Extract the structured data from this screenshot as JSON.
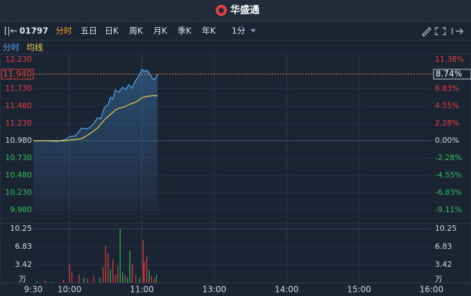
{
  "header": {
    "brand": "华盛通"
  },
  "toolbar": {
    "code": "01797",
    "tabs": [
      "分时",
      "五日",
      "日K",
      "周K",
      "月K",
      "季K",
      "年K"
    ],
    "interval": "1分"
  },
  "chart_data": {
    "type": "line",
    "xlim": [
      0,
      330
    ],
    "xticks": [
      {
        "value": 0,
        "label": "9:30"
      },
      {
        "value": 30,
        "label": "10:00"
      },
      {
        "value": 90,
        "label": "11:00"
      },
      {
        "value": 150,
        "label": "13:00"
      },
      {
        "value": 210,
        "label": "14:00"
      },
      {
        "value": 270,
        "label": "15:00"
      },
      {
        "value": 330,
        "label": "16:00"
      }
    ],
    "ylim": [
      9.98,
      12.23
    ],
    "yticks": [
      {
        "value": 12.23,
        "label": "12.230"
      },
      {
        "value": 11.73,
        "label": "11.730"
      },
      {
        "value": 11.48,
        "label": "11.480"
      },
      {
        "value": 11.23,
        "label": "11.230"
      },
      {
        "value": 10.98,
        "label": "10.980"
      },
      {
        "value": 10.73,
        "label": "10.730"
      },
      {
        "value": 10.48,
        "label": "10.480"
      },
      {
        "value": 10.23,
        "label": "10.230"
      },
      {
        "value": 9.98,
        "label": "9.980"
      }
    ],
    "y2lim": [
      -9.11,
      11.38
    ],
    "y2ticks": [
      {
        "value": 11.38,
        "label": "11.38%"
      },
      {
        "value": 6.83,
        "label": "6.83%"
      },
      {
        "value": 4.55,
        "label": "4.55%"
      },
      {
        "value": 2.28,
        "label": "2.28%"
      },
      {
        "value": 0,
        "label": "0.00%"
      },
      {
        "value": -2.28,
        "label": "-2.28%"
      },
      {
        "value": -4.55,
        "label": "-4.55%"
      },
      {
        "value": -6.83,
        "label": "-6.83%"
      },
      {
        "value": -9.11,
        "label": "-9.11%"
      }
    ],
    "last_price": {
      "value": 11.94,
      "label": "11.940"
    },
    "last_change": {
      "value": 8.74,
      "label": "8.74%"
    },
    "x": [
      0,
      10,
      20,
      27,
      30,
      35,
      40,
      45,
      50,
      53,
      56,
      59,
      62,
      64,
      66,
      68,
      71,
      74,
      77,
      79,
      82,
      84,
      87,
      90,
      92,
      94,
      96,
      98,
      100,
      102,
      103
    ],
    "series": [
      {
        "name": "分时",
        "color": "#5aa9f0",
        "values": [
          10.98,
          10.98,
          10.97,
          11.0,
          11.04,
          11.05,
          11.16,
          11.15,
          11.22,
          11.31,
          11.3,
          11.46,
          11.5,
          11.61,
          11.58,
          11.71,
          11.68,
          11.75,
          11.72,
          11.79,
          11.74,
          11.83,
          11.9,
          12.01,
          11.98,
          12.0,
          11.96,
          11.9,
          11.86,
          11.9,
          11.94
        ]
      },
      {
        "name": "均线",
        "color": "#f0d34a",
        "values": [
          10.98,
          10.98,
          10.98,
          10.98,
          10.99,
          11.0,
          11.01,
          11.06,
          11.12,
          11.16,
          11.22,
          11.28,
          11.33,
          11.36,
          11.39,
          11.42,
          11.45,
          11.46,
          11.48,
          11.5,
          11.52,
          11.53,
          11.56,
          11.6,
          11.61,
          11.62,
          11.62,
          11.63,
          11.63,
          11.63,
          11.63
        ]
      }
    ],
    "volume": {
      "ylim": [
        0,
        10.25
      ],
      "yticks": [
        10.25,
        6.83,
        3.42
      ],
      "unit": "万",
      "x": [
        3,
        10,
        15,
        25,
        30,
        32,
        38,
        42,
        45,
        50,
        55,
        58,
        60,
        62,
        64,
        66,
        68,
        70,
        72,
        74,
        76,
        78,
        80,
        82,
        85,
        88,
        91,
        92,
        94,
        96,
        98,
        100,
        102
      ],
      "values": [
        0.3,
        0.4,
        0.2,
        0.6,
        3.5,
        2.0,
        1.5,
        1.0,
        0.8,
        1.2,
        0.9,
        3.0,
        7.0,
        5.5,
        2.5,
        4.5,
        1.5,
        3.2,
        10.25,
        2.0,
        1.5,
        1.0,
        6.0,
        3.5,
        1.5,
        0.9,
        8.2,
        4.0,
        5.0,
        2.5,
        1.3,
        0.8,
        1.5
      ],
      "colors": [
        "#2fc25b",
        "#e8403f",
        "#2fc25b",
        "#e8403f",
        "#e8403f",
        "#e8403f",
        "#e8403f",
        "#2fc25b",
        "#e8403f",
        "#e8403f",
        "#2fc25b",
        "#e8403f",
        "#e8403f",
        "#e8403f",
        "#2fc25b",
        "#e8403f",
        "#e8403f",
        "#e8403f",
        "#2fc25b",
        "#2fc25b",
        "#e8403f",
        "#2fc25b",
        "#2fc25b",
        "#e8403f",
        "#e8403f",
        "#2fc25b",
        "#e8403f",
        "#e8403f",
        "#e8403f",
        "#2fc25b",
        "#e8403f",
        "#e8403f",
        "#2fc25b"
      ]
    }
  }
}
